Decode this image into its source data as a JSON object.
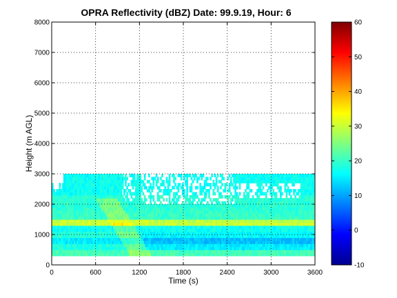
{
  "chart_data": {
    "type": "heatmap",
    "title": "OPRA Reflectivity (dBZ)  Date: 99.9.19, Hour: 6",
    "xlabel": "Time (s)",
    "ylabel": "Height (m AGL)",
    "xlim": [
      0,
      3600
    ],
    "ylim": [
      0,
      8000
    ],
    "xticks": [
      0,
      600,
      1200,
      1800,
      2400,
      3000,
      3600
    ],
    "yticks": [
      0,
      1000,
      2000,
      3000,
      4000,
      5000,
      6000,
      7000,
      8000
    ],
    "grid": true,
    "colorbar": {
      "range": [
        -10,
        60
      ],
      "ticks": [
        -10,
        0,
        10,
        20,
        30,
        40,
        50,
        60
      ],
      "colormap": "jet"
    },
    "layers": [
      {
        "height_range": [
          300,
          500
        ],
        "dbz": 21
      },
      {
        "height_range": [
          500,
          700
        ],
        "dbz": 18
      },
      {
        "height_range": [
          700,
          900
        ],
        "dbz": 15
      },
      {
        "height_range": [
          900,
          1100
        ],
        "dbz": 19
      },
      {
        "height_range": [
          1100,
          1300
        ],
        "dbz": 17
      },
      {
        "height_range": [
          1300,
          1500
        ],
        "dbz": 30
      },
      {
        "height_range": [
          1500,
          1800
        ],
        "dbz": 20
      },
      {
        "height_range": [
          1800,
          2300
        ],
        "dbz": 19
      },
      {
        "height_range": [
          2300,
          3000
        ],
        "dbz": 17
      }
    ],
    "bright_band": {
      "height": 1400,
      "dbz": 31
    },
    "echo_top": {
      "time_range": [
        0,
        3600
      ],
      "max_height": 3300,
      "typical_height": 3000
    }
  }
}
